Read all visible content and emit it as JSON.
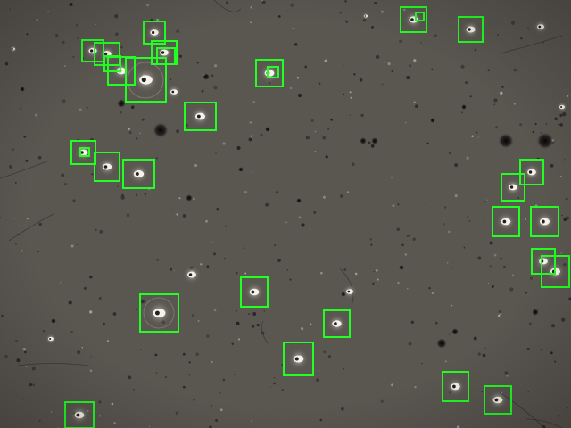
{
  "image": {
    "kind": "phase-contrast microscopy of motile cells with detection boxes",
    "background_color": "#5a5650",
    "box_color": "#22ff22",
    "detection_count": 31
  },
  "detections": [
    {
      "id": 1
    },
    {
      "id": 2
    },
    {
      "id": 3
    },
    {
      "id": 4
    },
    {
      "id": 5
    },
    {
      "id": 6
    },
    {
      "id": 7
    },
    {
      "id": 8
    },
    {
      "id": 9
    },
    {
      "id": 10
    },
    {
      "id": 11
    },
    {
      "id": 12
    },
    {
      "id": 13
    },
    {
      "id": 14
    },
    {
      "id": 15
    },
    {
      "id": 16
    },
    {
      "id": 17
    },
    {
      "id": 18
    },
    {
      "id": 19
    },
    {
      "id": 20
    },
    {
      "id": 21
    },
    {
      "id": 22
    },
    {
      "id": 23
    },
    {
      "id": 24
    },
    {
      "id": 25
    },
    {
      "id": 26
    },
    {
      "id": 27
    },
    {
      "id": 28
    },
    {
      "id": 29
    },
    {
      "id": 30
    },
    {
      "id": 31
    }
  ]
}
